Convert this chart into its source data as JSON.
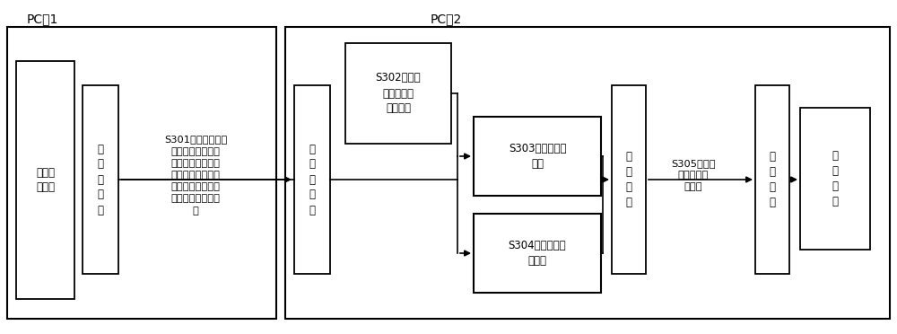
{
  "bg_color": "#ffffff",
  "border_color": "#000000",
  "text_color": "#000000",
  "pc1_label": "PC机1",
  "pc2_label": "PC机2",
  "box_run_sim": "运行仿\n真软件",
  "box_eth1": "以\n太\n网\n接\n口",
  "box_s301": "S301：目标车辆的\n第二坐标信息、与\n目标车辆关联的车\n道分别对应的车道\n线信息、以及目标\n车辆的第二航向信\n息",
  "box_eth2": "以\n太\n网\n接\n口",
  "box_s302": "S302：获取\n预采集的路\n径点信息",
  "box_s303": "S303：确定导航\n信息",
  "box_s304": "S304：确定参考\n点信息",
  "box_model1": "模\n型\n接\n口",
  "box_s305": "S305：导航\n信息和参考\n点信息",
  "box_model2": "模\n型\n接\n口",
  "box_ctrl": "规\n控\n算\n法",
  "font_size_label": 10,
  "font_size_box": 8.5,
  "font_size_mid": 8.0
}
